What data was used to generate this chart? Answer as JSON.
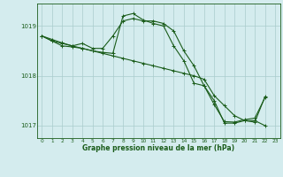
{
  "background_color": "#d4ecee",
  "grid_color": "#aacccc",
  "line_color": "#1a5c1a",
  "xlabel": "Graphe pression niveau de la mer (hPa)",
  "s1_y": [
    1018.8,
    1018.7,
    1018.65,
    1018.6,
    1018.65,
    1018.55,
    1018.55,
    1018.8,
    1019.1,
    1019.15,
    1019.1,
    1019.1,
    1019.05,
    1018.9,
    1018.5,
    1018.2,
    1017.8,
    1017.5,
    1017.05,
    1017.05,
    1017.1,
    1017.1,
    1017.0,
    null
  ],
  "s2_y": [
    1018.8,
    1018.73,
    1018.66,
    1018.6,
    1018.55,
    1018.5,
    1018.45,
    1018.4,
    1018.35,
    1018.3,
    1018.25,
    1018.2,
    1018.15,
    1018.1,
    1018.05,
    1018.0,
    1017.93,
    1017.6,
    1017.4,
    1017.2,
    1017.1,
    1017.07,
    1017.58,
    null
  ],
  "s3_y": [
    1018.8,
    1018.7,
    1018.6,
    1018.58,
    1018.55,
    1018.5,
    1018.47,
    1018.45,
    1019.2,
    1019.25,
    1019.12,
    1019.05,
    1019.0,
    1018.6,
    1018.3,
    1017.85,
    1017.8,
    1017.42,
    1017.08,
    1017.07,
    1017.12,
    1017.15,
    1017.56,
    null
  ],
  "ylim": [
    1016.75,
    1019.45
  ],
  "yticks": [
    1017,
    1018,
    1019
  ],
  "xticks": [
    0,
    1,
    2,
    3,
    4,
    5,
    6,
    7,
    8,
    9,
    10,
    11,
    12,
    13,
    14,
    15,
    16,
    17,
    18,
    19,
    20,
    21,
    22,
    23
  ],
  "figsize": [
    3.2,
    2.0
  ],
  "dpi": 100
}
